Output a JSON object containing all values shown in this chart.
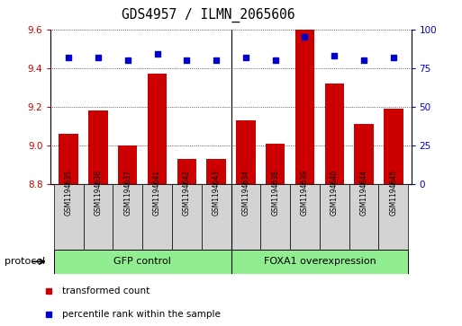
{
  "title": "GDS4957 / ILMN_2065606",
  "samples": [
    "GSM1194635",
    "GSM1194636",
    "GSM1194637",
    "GSM1194641",
    "GSM1194642",
    "GSM1194643",
    "GSM1194634",
    "GSM1194638",
    "GSM1194639",
    "GSM1194640",
    "GSM1194644",
    "GSM1194645"
  ],
  "transformed_counts": [
    9.06,
    9.18,
    9.0,
    9.37,
    8.93,
    8.93,
    9.13,
    9.01,
    9.6,
    9.32,
    9.11,
    9.19
  ],
  "percentile_ranks": [
    82,
    82,
    80,
    84,
    80,
    80,
    82,
    80,
    95,
    83,
    80,
    82
  ],
  "ylim_left": [
    8.8,
    9.6
  ],
  "ylim_right": [
    0,
    100
  ],
  "yticks_left": [
    8.8,
    9.0,
    9.2,
    9.4,
    9.6
  ],
  "yticks_right": [
    0,
    25,
    50,
    75,
    100
  ],
  "groups": [
    {
      "label": "GFP control",
      "start": 0,
      "end": 6,
      "color": "#90EE90"
    },
    {
      "label": "FOXA1 overexpression",
      "start": 6,
      "end": 12,
      "color": "#90EE90"
    }
  ],
  "group_separator": 6,
  "bar_color": "#CC0000",
  "dot_color": "#0000CC",
  "grid_color": "#000000",
  "background_color": "#FFFFFF",
  "tick_color_left": "#CC0000",
  "tick_color_right": "#0000CC",
  "legend_items": [
    {
      "label": "transformed count",
      "color": "#CC0000"
    },
    {
      "label": "percentile rank within the sample",
      "color": "#0000CC"
    }
  ],
  "protocol_label": "protocol",
  "bar_width": 0.65
}
